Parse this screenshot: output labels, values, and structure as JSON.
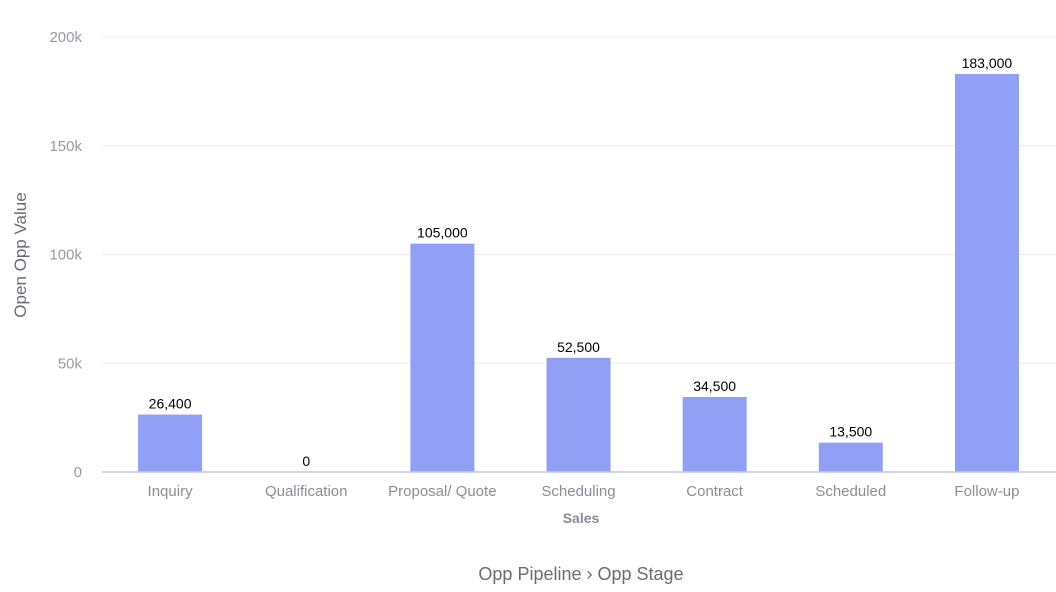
{
  "chart_data": {
    "type": "bar",
    "categories": [
      "Inquiry",
      "Qualification",
      "Proposal/ Quote",
      "Scheduling",
      "Contract",
      "Scheduled",
      "Follow-up"
    ],
    "values": [
      26400,
      0,
      105000,
      52500,
      34500,
      13500,
      183000
    ],
    "data_labels": [
      "26,400",
      "0",
      "105,000",
      "52,500",
      "34,500",
      "13,500",
      "183,000"
    ],
    "ylabel": "Open Opp Value",
    "group_label": "Sales",
    "xlabel": "Opp Pipeline › Opp Stage",
    "ylim": [
      0,
      200000
    ],
    "yticks": [
      {
        "value": 0,
        "label": "0"
      },
      {
        "value": 50000,
        "label": "50k"
      },
      {
        "value": 100000,
        "label": "100k"
      },
      {
        "value": 150000,
        "label": "150k"
      },
      {
        "value": 200000,
        "label": "200k"
      }
    ],
    "grid": true,
    "bar_color": "#919ff5"
  }
}
